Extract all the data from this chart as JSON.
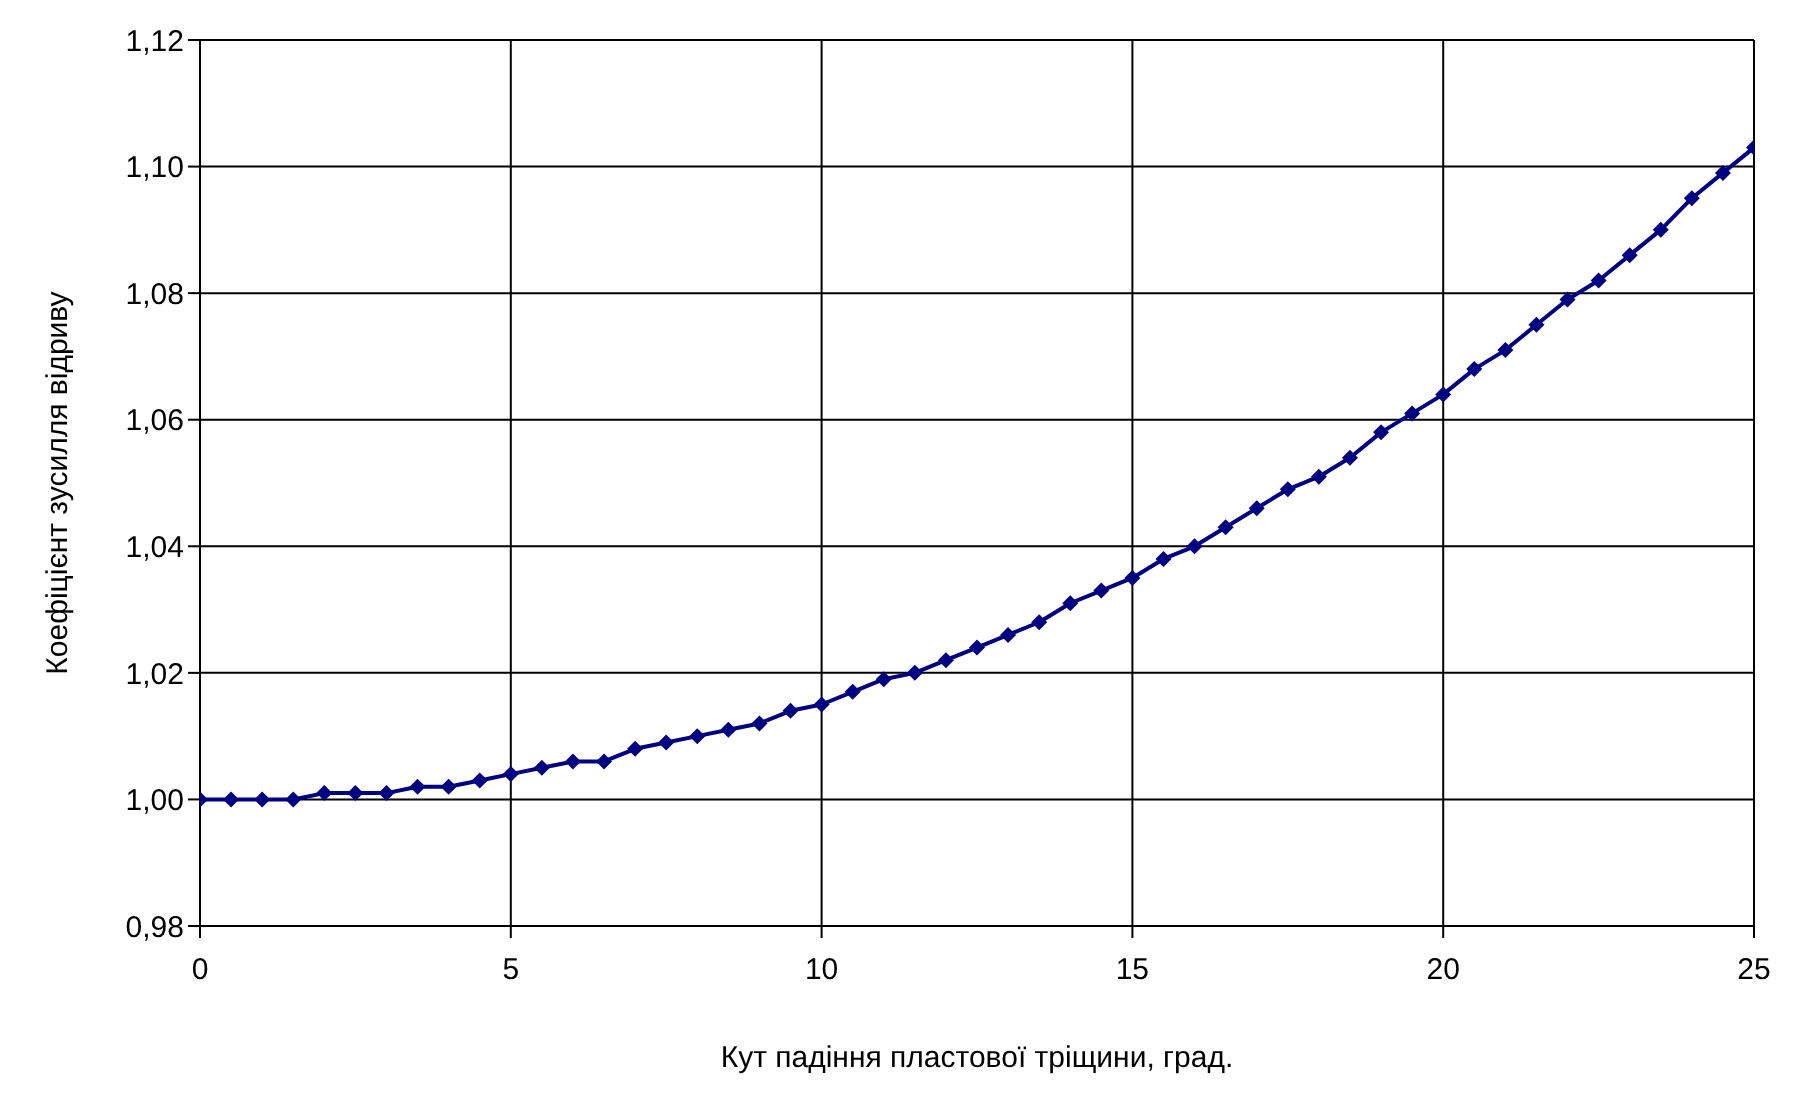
{
  "chart_data": {
    "type": "line",
    "xlabel": "Кут падіння пластової тріщини, град.",
    "ylabel": "Коефіцієнт зусилля відриву",
    "x": [
      0,
      0.5,
      1,
      1.5,
      2,
      2.5,
      3,
      3.5,
      4,
      4.5,
      5,
      5.5,
      6,
      6.5,
      7,
      7.5,
      8,
      8.5,
      9,
      9.5,
      10,
      10.5,
      11,
      11.5,
      12,
      12.5,
      13,
      13.5,
      14,
      14.5,
      15,
      15.5,
      16,
      16.5,
      17,
      17.5,
      18,
      18.5,
      19,
      19.5,
      20,
      20.5,
      21,
      21.5,
      22,
      22.5,
      23,
      23.5,
      24,
      24.5,
      25
    ],
    "series": [
      {
        "color": "#000080",
        "values": [
          1.0,
          1.0,
          1.0,
          1.0,
          1.001,
          1.001,
          1.001,
          1.002,
          1.002,
          1.003,
          1.004,
          1.005,
          1.006,
          1.006,
          1.008,
          1.009,
          1.01,
          1.011,
          1.012,
          1.014,
          1.015,
          1.017,
          1.019,
          1.02,
          1.022,
          1.024,
          1.026,
          1.028,
          1.031,
          1.033,
          1.035,
          1.038,
          1.04,
          1.043,
          1.046,
          1.049,
          1.051,
          1.054,
          1.058,
          1.061,
          1.064,
          1.068,
          1.071,
          1.075,
          1.079,
          1.082,
          1.086,
          1.09,
          1.095,
          1.099,
          1.103
        ]
      }
    ],
    "xlim": [
      0,
      25
    ],
    "xticks": [
      0,
      5,
      10,
      15,
      20,
      25
    ],
    "ylim": [
      0.98,
      1.12
    ],
    "yticks": [
      {
        "value": 0.98,
        "label": "0,98"
      },
      {
        "value": 1.0,
        "label": "1,00"
      },
      {
        "value": 1.02,
        "label": "1,02"
      },
      {
        "value": 1.04,
        "label": "1,04"
      },
      {
        "value": 1.06,
        "label": "1,06"
      },
      {
        "value": 1.08,
        "label": "1,08"
      },
      {
        "value": 1.1,
        "label": "1,10"
      },
      {
        "value": 1.12,
        "label": "1,12"
      }
    ],
    "grid": true,
    "legend": false,
    "marker": "diamond",
    "line_style": "solid"
  }
}
